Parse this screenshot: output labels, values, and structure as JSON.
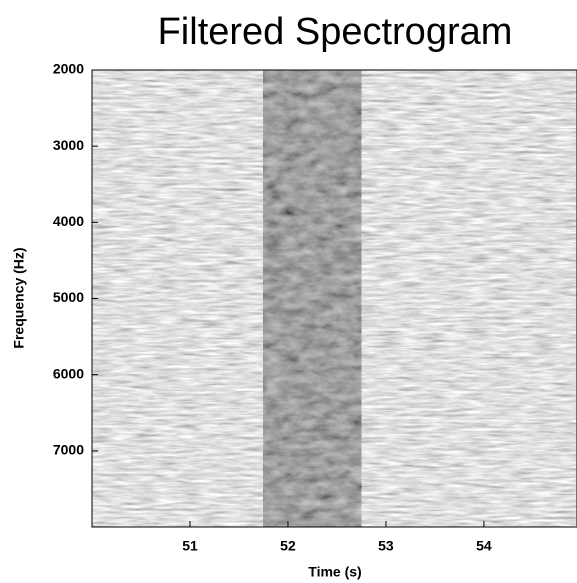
{
  "chart_data": {
    "type": "spectrogram",
    "title": "Filtered Spectrogram",
    "x_label": "Time (s)",
    "y_label": "Frequency (Hz)",
    "xlim": [
      50,
      54.95
    ],
    "xticks": [
      51,
      52,
      53,
      54
    ],
    "ylim": [
      2000,
      8000
    ],
    "yticks": [
      2000,
      3000,
      4000,
      5000,
      6000,
      7000
    ],
    "y_inverted": true,
    "dark_band_x": [
      51.75,
      52.75
    ],
    "colormap": "gray"
  }
}
